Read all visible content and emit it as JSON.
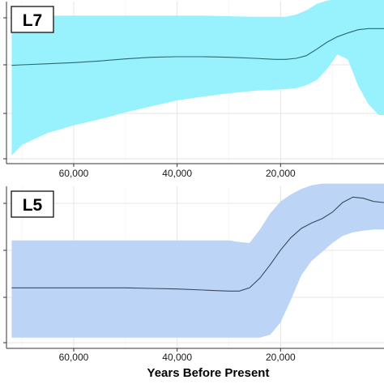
{
  "chart_data": [
    {
      "type": "area",
      "panel_label": "L7",
      "xlabel": "",
      "ylabel": "",
      "x_reversed": true,
      "xlim": [
        73000,
        0
      ],
      "ylim": [
        0,
        3
      ],
      "grid": true,
      "x_ticks": [
        60000,
        40000,
        20000
      ],
      "x_tick_labels": [
        "60,000",
        "40,000",
        "20,000"
      ],
      "color": "#00e5ff",
      "band_color": "#98f2fd",
      "line_color": "#2b6870",
      "x": [
        72000,
        70000,
        65000,
        60000,
        55000,
        50000,
        45000,
        40000,
        35000,
        30000,
        25000,
        21000,
        19000,
        17000,
        15000,
        13000,
        11000,
        9000,
        7000,
        5000,
        3000,
        1000,
        0
      ],
      "series": [
        {
          "median": [
            1.82,
            1.83,
            1.85,
            1.87,
            1.9,
            1.94,
            1.97,
            1.98,
            1.98,
            1.97,
            1.95,
            1.93,
            1.93,
            1.95,
            2.0,
            2.12,
            2.25,
            2.35,
            2.42,
            2.48,
            2.5,
            2.5,
            2.5
          ],
          "upper": [
            2.72,
            2.74,
            2.74,
            2.74,
            2.74,
            2.74,
            2.74,
            2.74,
            2.74,
            2.73,
            2.72,
            2.72,
            2.72,
            2.76,
            2.84,
            2.96,
            3.02,
            3.05,
            3.05,
            3.05,
            3.05,
            3.05,
            3.05
          ],
          "lower": [
            0.15,
            0.35,
            0.57,
            0.71,
            0.82,
            0.95,
            1.06,
            1.17,
            1.24,
            1.3,
            1.35,
            1.37,
            1.38,
            1.4,
            1.45,
            1.55,
            1.75,
            2.02,
            1.93,
            1.44,
            1.1,
            0.9,
            0.9
          ]
        }
      ]
    },
    {
      "type": "area",
      "panel_label": "L5",
      "xlabel": "Years Before Present",
      "ylabel": "",
      "x_reversed": true,
      "xlim": [
        73000,
        0
      ],
      "ylim": [
        0,
        3
      ],
      "grid": true,
      "x_ticks": [
        60000,
        40000,
        20000
      ],
      "x_tick_labels": [
        "60,000",
        "40,000",
        "20,000"
      ],
      "color": "#a9c8f5",
      "band_color": "#bcd4f6",
      "line_color": "#3a4a5e",
      "x": [
        72000,
        70000,
        65000,
        60000,
        55000,
        50000,
        45000,
        40000,
        35000,
        30000,
        28000,
        26000,
        24000,
        22000,
        20000,
        18000,
        16000,
        14000,
        12000,
        10000,
        8000,
        6000,
        4000,
        2000,
        0
      ],
      "series": [
        {
          "median": [
            1.12,
            1.12,
            1.12,
            1.12,
            1.12,
            1.12,
            1.11,
            1.1,
            1.08,
            1.06,
            1.06,
            1.12,
            1.3,
            1.55,
            1.82,
            2.05,
            2.22,
            2.32,
            2.4,
            2.52,
            2.7,
            2.8,
            2.78,
            2.72,
            2.7
          ],
          "upper": [
            2.0,
            2.0,
            2.0,
            2.0,
            2.0,
            2.0,
            2.0,
            2.0,
            2.0,
            2.0,
            1.97,
            1.95,
            2.2,
            2.5,
            2.72,
            2.85,
            2.95,
            3.02,
            3.05,
            3.05,
            3.05,
            3.05,
            3.05,
            3.05,
            3.05
          ],
          "lower": [
            0.2,
            0.2,
            0.2,
            0.2,
            0.2,
            0.2,
            0.2,
            0.2,
            0.2,
            0.2,
            0.2,
            0.2,
            0.2,
            0.25,
            0.48,
            0.9,
            1.35,
            1.62,
            1.78,
            1.95,
            2.08,
            2.15,
            2.18,
            2.2,
            2.2
          ]
        }
      ]
    }
  ]
}
